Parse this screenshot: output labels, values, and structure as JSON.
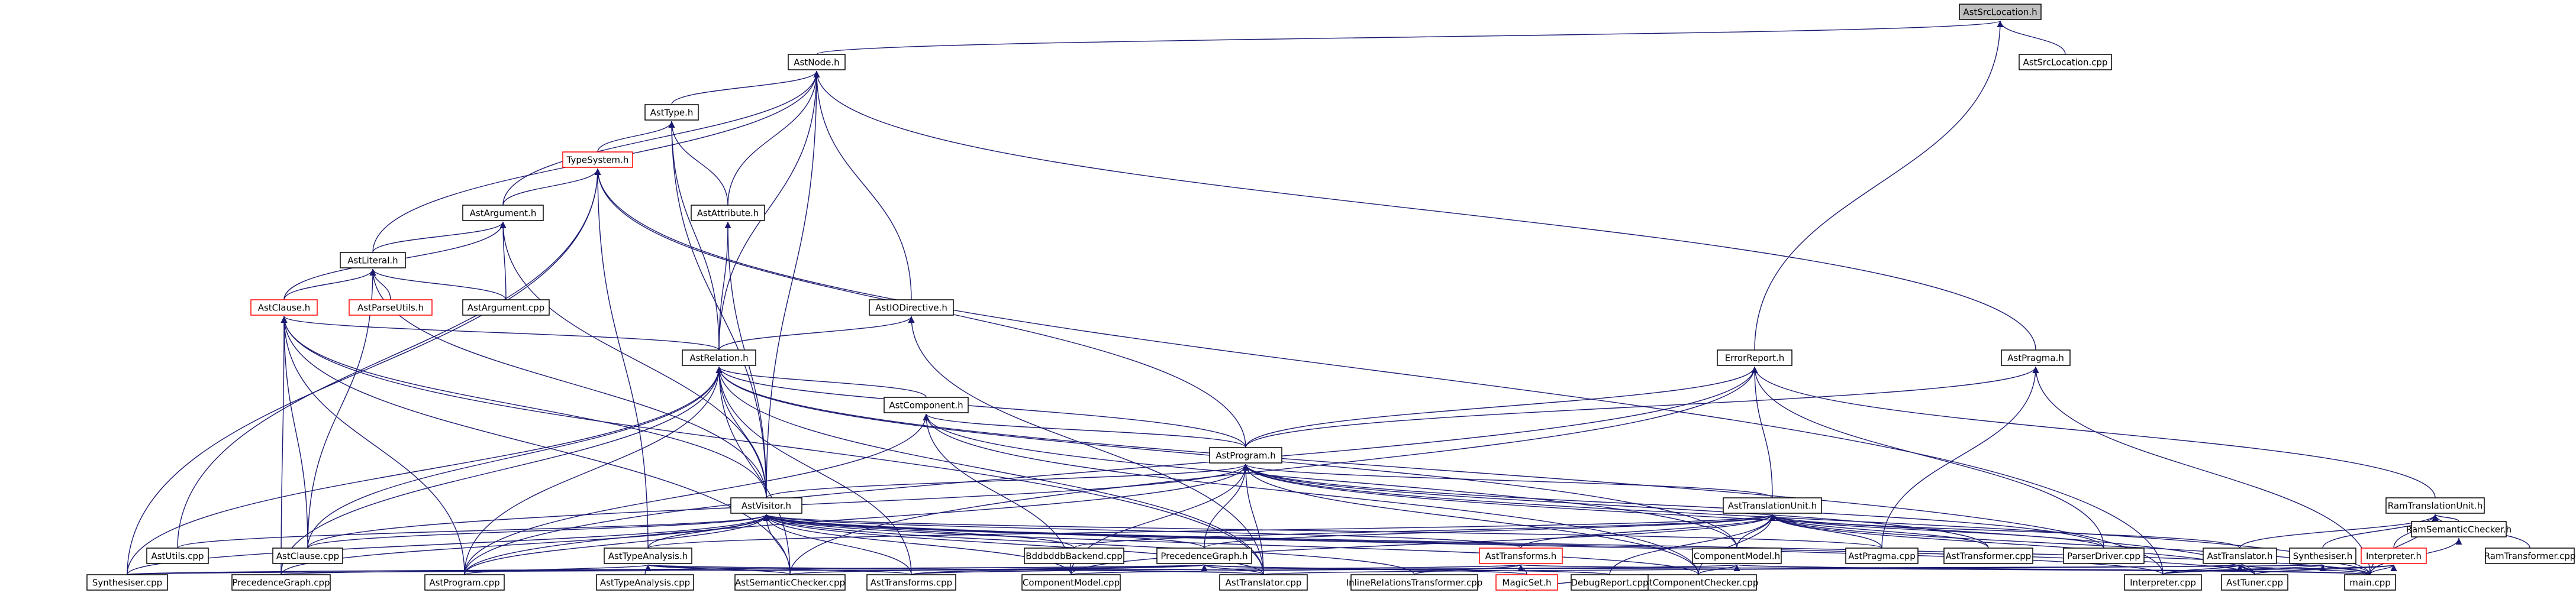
{
  "colors": {
    "edge": "#191970",
    "node_border": "#000000",
    "node_border_incomplete": "#ff0000",
    "root_fill": "#bfbfbf",
    "node_fill": "#ffffff",
    "text": "#000000"
  },
  "nodes": {
    "AstSrcLocation_h": "AstSrcLocation.h",
    "AstNode_h": "AstNode.h",
    "AstSrcLocation_cpp": "AstSrcLocation.cpp",
    "AstType_h": "AstType.h",
    "TypeSystem_h": "TypeSystem.h",
    "AstArgument_h": "AstArgument.h",
    "AstAttribute_h": "AstAttribute.h",
    "AstLiteral_h": "AstLiteral.h",
    "AstClause_h": "AstClause.h",
    "AstParseUtils_h": "AstParseUtils.h",
    "AstArgument_cpp": "AstArgument.cpp",
    "AstIODirective_h": "AstIODirective.h",
    "AstRelation_h": "AstRelation.h",
    "AstComponent_h": "AstComponent.h",
    "ErrorReport_h": "ErrorReport.h",
    "AstPragma_h": "AstPragma.h",
    "AstProgram_h": "AstProgram.h",
    "AstTranslationUnit_h": "AstTranslationUnit.h",
    "RamTranslationUnit_h": "RamTranslationUnit.h",
    "AstVisitor_h": "AstVisitor.h",
    "AstUtils_cpp": "AstUtils.cpp",
    "AstClause_cpp": "AstClause.cpp",
    "BddbddbBackend_cpp": "BddbddbBackend.cpp",
    "PrecedenceGraph_h": "PrecedenceGraph.h",
    "AstTransforms_h": "AstTransforms.h",
    "ComponentModel_h": "ComponentModel.h",
    "AstPragma_cpp": "AstPragma.cpp",
    "AstTransformer_cpp": "AstTransformer.cpp",
    "ParserDriver_cpp": "ParserDriver.cpp",
    "AstTranslator_h": "AstTranslator.h",
    "Synthesiser_h": "Synthesiser.h",
    "Interpreter_h": "Interpreter.h",
    "RamSemanticChecker_h": "RamSemanticChecker.h",
    "RamTransformer_cpp": "RamTransformer.cpp",
    "AstTypeAnalysis_h": "AstTypeAnalysis.h",
    "Synthesiser_cpp": "Synthesiser.cpp",
    "PrecedenceGraph_cpp": "PrecedenceGraph.cpp",
    "AstProgram_cpp": "AstProgram.cpp",
    "AstTypeAnalysis_cpp": "AstTypeAnalysis.cpp",
    "AstSemanticChecker_cpp": "AstSemanticChecker.cpp",
    "AstTransforms_cpp": "AstTransforms.cpp",
    "ComponentModel_cpp": "ComponentModel.cpp",
    "AstTranslator_cpp": "AstTranslator.cpp",
    "InlineRelationsTransformer_cpp": "InlineRelationsTransformer.cpp",
    "MagicSet_h": "MagicSet.h",
    "AstComponentChecker_cpp": "AstComponentChecker.cpp",
    "Interpreter_cpp": "Interpreter.cpp",
    "AstTuner_cpp": "AstTuner.cpp",
    "main_cpp": "main.cpp",
    "DebugReport_cpp": "DebugReport.cpp"
  },
  "edges": [
    [
      "AstSrcLocation_h",
      "AstNode_h"
    ],
    [
      "AstSrcLocation_h",
      "AstSrcLocation_cpp"
    ],
    [
      "AstSrcLocation_h",
      "ErrorReport_h"
    ],
    [
      "AstNode_h",
      "AstType_h"
    ],
    [
      "AstNode_h",
      "AstArgument_h"
    ],
    [
      "AstNode_h",
      "AstAttribute_h"
    ],
    [
      "AstNode_h",
      "AstLiteral_h"
    ],
    [
      "AstNode_h",
      "AstIODirective_h"
    ],
    [
      "AstNode_h",
      "AstRelation_h"
    ],
    [
      "AstNode_h",
      "AstPragma_h"
    ],
    [
      "AstNode_h",
      "AstVisitor_h"
    ],
    [
      "AstType_h",
      "TypeSystem_h"
    ],
    [
      "AstType_h",
      "AstAttribute_h"
    ],
    [
      "AstType_h",
      "AstRelation_h"
    ],
    [
      "AstType_h",
      "AstVisitor_h"
    ],
    [
      "TypeSystem_h",
      "AstArgument_h"
    ],
    [
      "TypeSystem_h",
      "AstProgram_h"
    ],
    [
      "TypeSystem_h",
      "AstTypeAnalysis_h"
    ],
    [
      "TypeSystem_h",
      "AstUtils_cpp"
    ],
    [
      "TypeSystem_h",
      "Synthesiser_cpp"
    ],
    [
      "TypeSystem_h",
      "Interpreter_cpp"
    ],
    [
      "AstArgument_h",
      "AstLiteral_h"
    ],
    [
      "AstArgument_h",
      "AstClause_h"
    ],
    [
      "AstArgument_h",
      "AstArgument_cpp"
    ],
    [
      "AstArgument_h",
      "AstVisitor_h"
    ],
    [
      "AstAttribute_h",
      "AstRelation_h"
    ],
    [
      "AstAttribute_h",
      "AstVisitor_h"
    ],
    [
      "AstLiteral_h",
      "AstClause_h"
    ],
    [
      "AstLiteral_h",
      "AstParseUtils_h"
    ],
    [
      "AstLiteral_h",
      "AstArgument_cpp"
    ],
    [
      "AstLiteral_h",
      "AstVisitor_h"
    ],
    [
      "AstLiteral_h",
      "AstClause_cpp"
    ],
    [
      "AstClause_h",
      "AstRelation_h"
    ],
    [
      "AstClause_h",
      "AstVisitor_h"
    ],
    [
      "AstClause_h",
      "AstClause_cpp"
    ],
    [
      "AstClause_h",
      "AstProgram_cpp"
    ],
    [
      "AstClause_h",
      "PrecedenceGraph_cpp"
    ],
    [
      "AstClause_h",
      "AstTranslator_cpp"
    ],
    [
      "AstClause_h",
      "AstSemanticChecker_cpp"
    ],
    [
      "AstIODirective_h",
      "AstRelation_h"
    ],
    [
      "AstIODirective_h",
      "AstTranslator_cpp"
    ],
    [
      "AstRelation_h",
      "AstComponent_h"
    ],
    [
      "AstRelation_h",
      "AstProgram_h"
    ],
    [
      "AstRelation_h",
      "AstVisitor_h"
    ],
    [
      "AstRelation_h",
      "AstClause_cpp"
    ],
    [
      "AstRelation_h",
      "AstProgram_cpp"
    ],
    [
      "AstRelation_h",
      "PrecedenceGraph_cpp"
    ],
    [
      "AstRelation_h",
      "Synthesiser_cpp"
    ],
    [
      "AstRelation_h",
      "AstTransforms_cpp"
    ],
    [
      "AstRelation_h",
      "AstSemanticChecker_cpp"
    ],
    [
      "AstRelation_h",
      "AstTranslator_cpp"
    ],
    [
      "AstRelation_h",
      "ComponentModel_h"
    ],
    [
      "AstRelation_h",
      "Interpreter_cpp"
    ],
    [
      "AstComponent_h",
      "AstProgram_h"
    ],
    [
      "AstComponent_h",
      "ComponentModel_h"
    ],
    [
      "AstComponent_h",
      "AstProgram_cpp"
    ],
    [
      "AstComponent_h",
      "ComponentModel_cpp"
    ],
    [
      "AstComponent_h",
      "AstComponentChecker_cpp"
    ],
    [
      "ErrorReport_h",
      "AstProgram_h"
    ],
    [
      "ErrorReport_h",
      "AstTranslationUnit_h"
    ],
    [
      "ErrorReport_h",
      "RamTranslationUnit_h"
    ],
    [
      "ErrorReport_h",
      "ParserDriver_cpp"
    ],
    [
      "ErrorReport_h",
      "AstProgram_cpp"
    ],
    [
      "ErrorReport_h",
      "AstSemanticChecker_cpp"
    ],
    [
      "AstPragma_h",
      "AstProgram_h"
    ],
    [
      "AstPragma_h",
      "AstPragma_cpp"
    ],
    [
      "AstPragma_h",
      "main_cpp"
    ],
    [
      "AstProgram_h",
      "AstTranslationUnit_h"
    ],
    [
      "AstProgram_h",
      "AstVisitor_h"
    ],
    [
      "AstProgram_h",
      "PrecedenceGraph_h"
    ],
    [
      "AstProgram_h",
      "AstClause_cpp"
    ],
    [
      "AstProgram_h",
      "AstProgram_cpp"
    ],
    [
      "AstProgram_h",
      "ComponentModel_cpp"
    ],
    [
      "AstProgram_h",
      "AstTranslator_cpp"
    ],
    [
      "AstProgram_h",
      "AstTransformer_cpp"
    ],
    [
      "AstProgram_h",
      "ParserDriver_cpp"
    ],
    [
      "AstProgram_h",
      "main_cpp"
    ],
    [
      "AstProgram_h",
      "AstTuner_cpp"
    ],
    [
      "AstProgram_h",
      "AstComponentChecker_cpp"
    ],
    [
      "AstTranslationUnit_h",
      "BddbddbBackend_cpp"
    ],
    [
      "AstTranslationUnit_h",
      "PrecedenceGraph_h"
    ],
    [
      "AstTranslationUnit_h",
      "AstTransforms_h"
    ],
    [
      "AstTranslationUnit_h",
      "ComponentModel_h"
    ],
    [
      "AstTranslationUnit_h",
      "AstPragma_cpp"
    ],
    [
      "AstTranslationUnit_h",
      "AstTransformer_cpp"
    ],
    [
      "AstTranslationUnit_h",
      "ParserDriver_cpp"
    ],
    [
      "AstTranslationUnit_h",
      "AstTranslator_h"
    ],
    [
      "AstTranslationUnit_h",
      "AstTypeAnalysis_h"
    ],
    [
      "AstTranslationUnit_h",
      "AstComponentChecker_cpp"
    ],
    [
      "AstTranslationUnit_h",
      "DebugReport_cpp"
    ],
    [
      "AstTranslationUnit_h",
      "main_cpp"
    ],
    [
      "AstTranslationUnit_h",
      "AstTuner_cpp"
    ],
    [
      "AstTranslationUnit_h",
      "ComponentModel_cpp"
    ],
    [
      "RamTranslationUnit_h",
      "AstTranslator_h"
    ],
    [
      "RamTranslationUnit_h",
      "Synthesiser_h"
    ],
    [
      "RamTranslationUnit_h",
      "Interpreter_h"
    ],
    [
      "RamTranslationUnit_h",
      "RamSemanticChecker_h"
    ],
    [
      "RamTranslationUnit_h",
      "RamTransformer_cpp"
    ],
    [
      "RamTranslationUnit_h",
      "main_cpp"
    ],
    [
      "AstVisitor_h",
      "AstUtils_cpp"
    ],
    [
      "AstVisitor_h",
      "AstClause_cpp"
    ],
    [
      "AstVisitor_h",
      "BddbddbBackend_cpp"
    ],
    [
      "AstVisitor_h",
      "PrecedenceGraph_h"
    ],
    [
      "AstVisitor_h",
      "AstTransforms_h"
    ],
    [
      "AstVisitor_h",
      "AstTypeAnalysis_h"
    ],
    [
      "AstVisitor_h",
      "Synthesiser_cpp"
    ],
    [
      "AstVisitor_h",
      "PrecedenceGraph_cpp"
    ],
    [
      "AstVisitor_h",
      "AstProgram_cpp"
    ],
    [
      "AstVisitor_h",
      "AstSemanticChecker_cpp"
    ],
    [
      "AstVisitor_h",
      "AstTransforms_cpp"
    ],
    [
      "AstVisitor_h",
      "ComponentModel_cpp"
    ],
    [
      "AstVisitor_h",
      "AstTranslator_cpp"
    ],
    [
      "AstVisitor_h",
      "InlineRelationsTransformer_cpp"
    ],
    [
      "AstVisitor_h",
      "AstComponentChecker_cpp"
    ],
    [
      "AstVisitor_h",
      "Interpreter_cpp"
    ],
    [
      "AstVisitor_h",
      "AstTuner_cpp"
    ],
    [
      "AstVisitor_h",
      "main_cpp"
    ],
    [
      "AstVisitor_h",
      "AstPragma_cpp"
    ],
    [
      "AstTypeAnalysis_h",
      "AstTypeAnalysis_cpp"
    ],
    [
      "AstTypeAnalysis_h",
      "AstSemanticChecker_cpp"
    ],
    [
      "AstTypeAnalysis_h",
      "AstTransforms_cpp"
    ],
    [
      "AstTypeAnalysis_h",
      "AstProgram_cpp"
    ],
    [
      "AstTypeAnalysis_h",
      "AstTranslator_cpp"
    ],
    [
      "PrecedenceGraph_h",
      "PrecedenceGraph_cpp"
    ],
    [
      "PrecedenceGraph_h",
      "AstSemanticChecker_cpp"
    ],
    [
      "PrecedenceGraph_h",
      "AstTransforms_cpp"
    ],
    [
      "PrecedenceGraph_h",
      "AstTranslator_cpp"
    ],
    [
      "PrecedenceGraph_h",
      "MagicSet_h"
    ],
    [
      "PrecedenceGraph_h",
      "DebugReport_cpp"
    ],
    [
      "PrecedenceGraph_h",
      "Synthesiser_cpp"
    ],
    [
      "AstTransforms_h",
      "AstTransforms_cpp"
    ],
    [
      "AstTransforms_h",
      "InlineRelationsTransformer_cpp"
    ],
    [
      "AstTransforms_h",
      "MagicSet_h"
    ],
    [
      "AstTransforms_h",
      "main_cpp"
    ],
    [
      "ComponentModel_h",
      "ComponentModel_cpp"
    ],
    [
      "ComponentModel_h",
      "AstComponentChecker_cpp"
    ],
    [
      "ComponentModel_h",
      "main_cpp"
    ],
    [
      "AstTranslator_h",
      "AstTranslator_cpp"
    ],
    [
      "AstTranslator_h",
      "Interpreter_cpp"
    ],
    [
      "AstTranslator_h",
      "AstTuner_cpp"
    ],
    [
      "AstTranslator_h",
      "main_cpp"
    ],
    [
      "Synthesiser_h",
      "Interpreter_cpp"
    ],
    [
      "Synthesiser_h",
      "main_cpp"
    ],
    [
      "Synthesiser_h",
      "Synthesiser_cpp"
    ],
    [
      "Interpreter_h",
      "Interpreter_cpp"
    ],
    [
      "Interpreter_h",
      "AstTuner_cpp"
    ],
    [
      "Interpreter_h",
      "main_cpp"
    ],
    [
      "RamSemanticChecker_h",
      "main_cpp"
    ],
    [
      "MagicSet_h",
      "DebugReport_cpp"
    ]
  ]
}
